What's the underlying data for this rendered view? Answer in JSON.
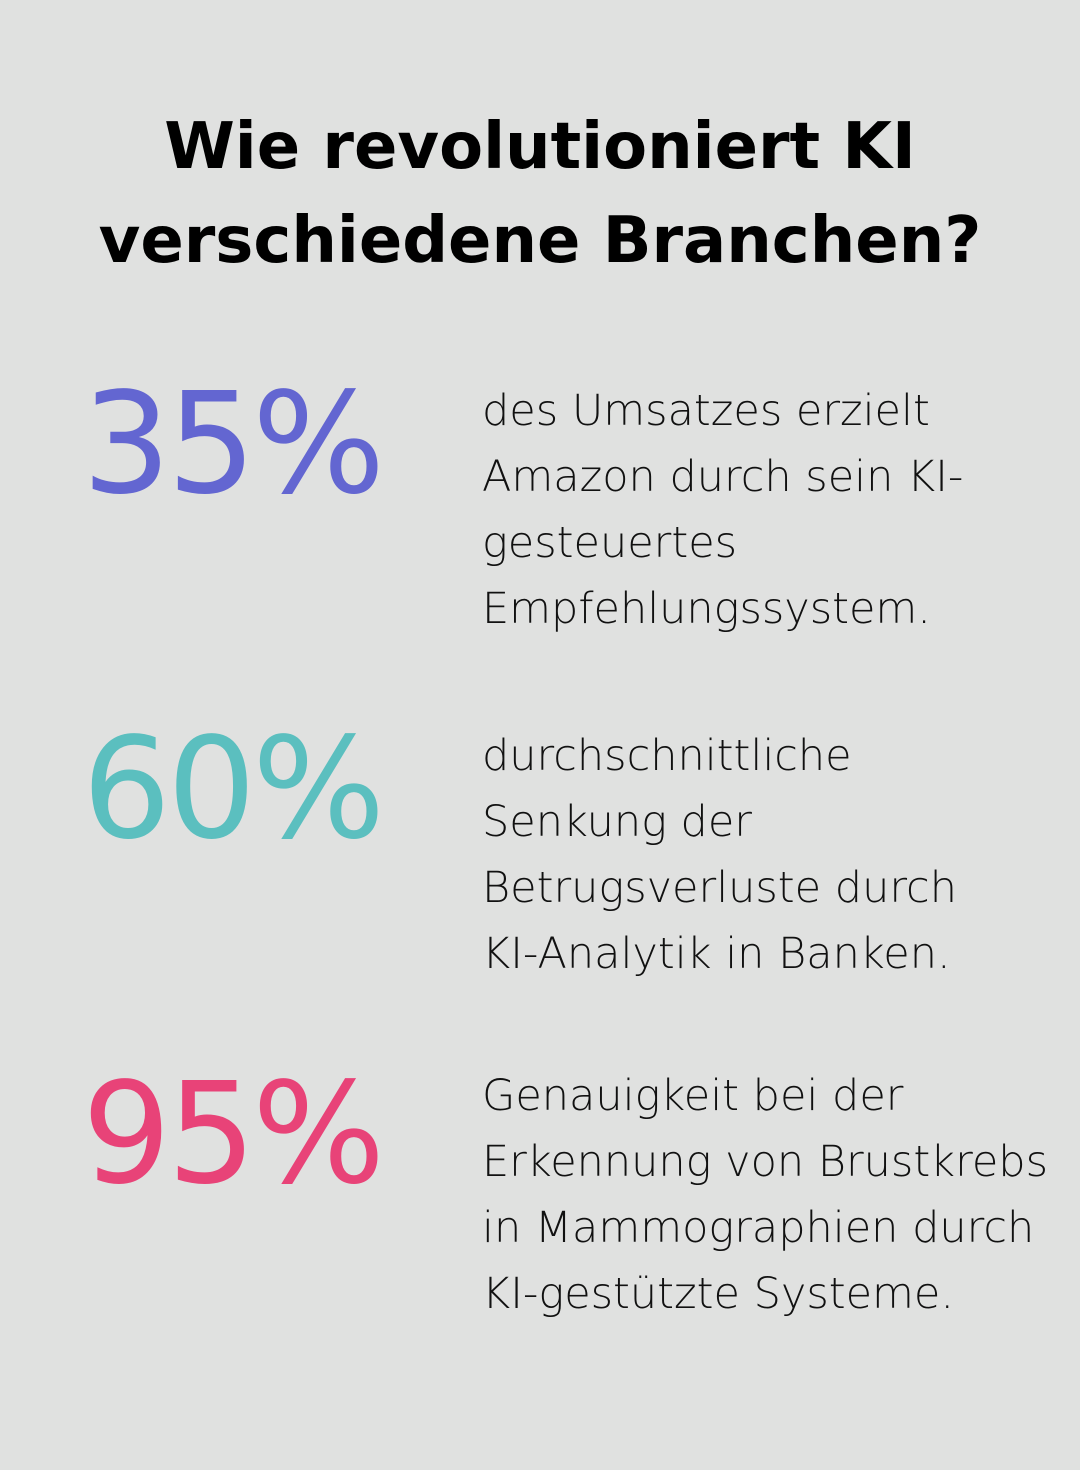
{
  "title": "Wie revolutioniert KI verschiedene Branchen?",
  "stats": [
    {
      "value": "35%",
      "color": "#6366d1",
      "text": "des Umsatzes erzielt Amazon durch sein KI-gesteuertes Empfehlungssystem."
    },
    {
      "value": "60%",
      "color": "#5bbfbf",
      "text": "durchschnittliche Senkung der Betrugsverluste durch KI-Analytik in Banken."
    },
    {
      "value": "95%",
      "color": "#e84378",
      "text": "Genauigkeit bei der Erkennung von Brustkrebs in Mammographien durch KI-gestützte Systeme."
    }
  ]
}
